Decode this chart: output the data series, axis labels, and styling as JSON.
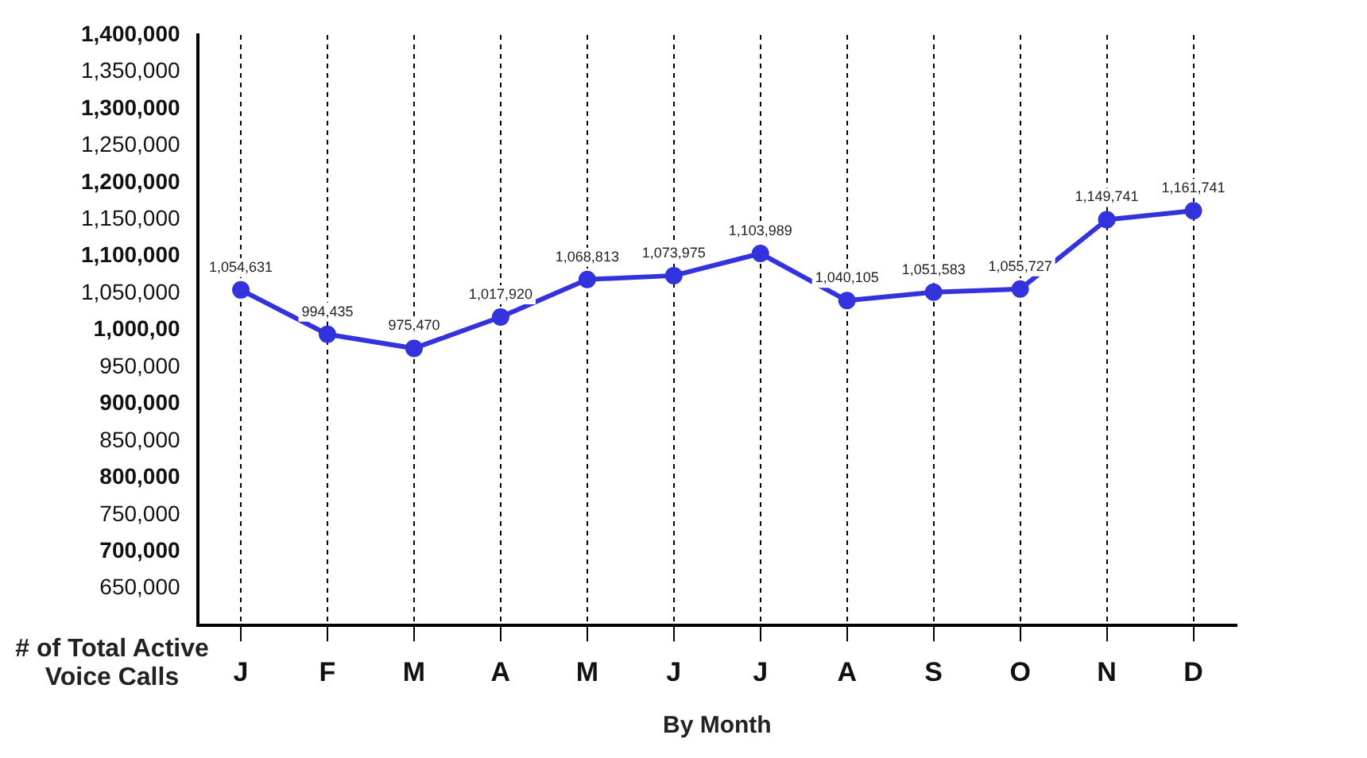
{
  "chart_data": {
    "type": "line",
    "xlabel": "By Month",
    "ylabel": "# of Total Active Voice Calls",
    "categories": [
      "J",
      "F",
      "M",
      "A",
      "M",
      "J",
      "J",
      "A",
      "S",
      "O",
      "N",
      "D"
    ],
    "series": [
      {
        "color": "#3333dd",
        "values": [
          1054631,
          994435,
          975470,
          1017920,
          1068813,
          1073975,
          1103989,
          1040105,
          1051583,
          1055727,
          1149741,
          1161741
        ]
      }
    ],
    "ylim": [
      600000,
      1400000
    ],
    "yticks": [
      {
        "value": 650000,
        "label": "650,000"
      },
      {
        "value": 700000,
        "label": "700,000"
      },
      {
        "value": 750000,
        "label": "750,000"
      },
      {
        "value": 800000,
        "label": "800,000"
      },
      {
        "value": 850000,
        "label": "850,000"
      },
      {
        "value": 900000,
        "label": "900,000"
      },
      {
        "value": 950000,
        "label": "950,000"
      },
      {
        "value": 1000000,
        "label": "1,000,00"
      },
      {
        "value": 1050000,
        "label": "1,050,000"
      },
      {
        "value": 1100000,
        "label": "1,100,000"
      },
      {
        "value": 1150000,
        "label": "1,150,000"
      },
      {
        "value": 1200000,
        "label": "1,200,000"
      },
      {
        "value": 1250000,
        "label": "1,250,000"
      },
      {
        "value": 1300000,
        "label": "1,300,000"
      },
      {
        "value": 1350000,
        "label": "1,350,000"
      },
      {
        "value": 1400000,
        "label": "1,400,000"
      }
    ],
    "value_labels": [
      "1,054,631",
      "994,435",
      "975,470",
      "1,017,920",
      "1,068,813",
      "1,073,975",
      "1,103,989",
      "1,040,105",
      "1,051,583",
      "1,055,727",
      "1,149,741",
      "1,161,741"
    ],
    "grid": "x",
    "marker": "circle",
    "line_style": "solid",
    "legend": false
  }
}
